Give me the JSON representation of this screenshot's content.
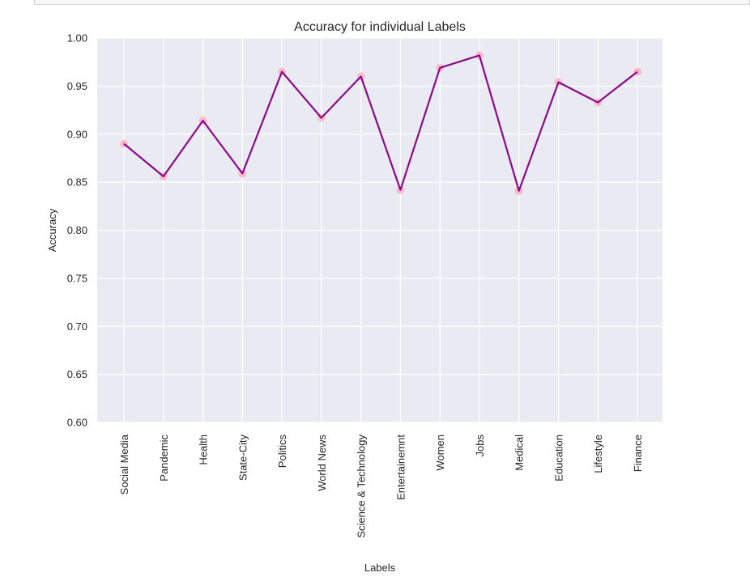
{
  "chart_data": {
    "type": "line",
    "title": "Accuracy for individual Labels",
    "xlabel": "Labels",
    "ylabel": "Accuracy",
    "ylim": [
      0.6,
      1.0
    ],
    "yticks": [
      "0.60",
      "0.65",
      "0.70",
      "0.75",
      "0.80",
      "0.85",
      "0.90",
      "0.95",
      "1.00"
    ],
    "grid": true,
    "categories": [
      "Social Media",
      "Pandemic",
      "Health",
      "State-City",
      "Politics",
      "World News",
      "Science & Technology",
      "Entertainemnt",
      "Women",
      "Jobs",
      "Medical",
      "Education",
      "Lifestyle",
      "Finance"
    ],
    "values": [
      0.89,
      0.856,
      0.914,
      0.859,
      0.965,
      0.917,
      0.96,
      0.842,
      0.969,
      0.982,
      0.841,
      0.954,
      0.933,
      0.965
    ],
    "colors": {
      "line": "#8b0a8b",
      "marker": "#ffb6c8",
      "background": "#eaeaf2",
      "grid": "#ffffff"
    }
  }
}
